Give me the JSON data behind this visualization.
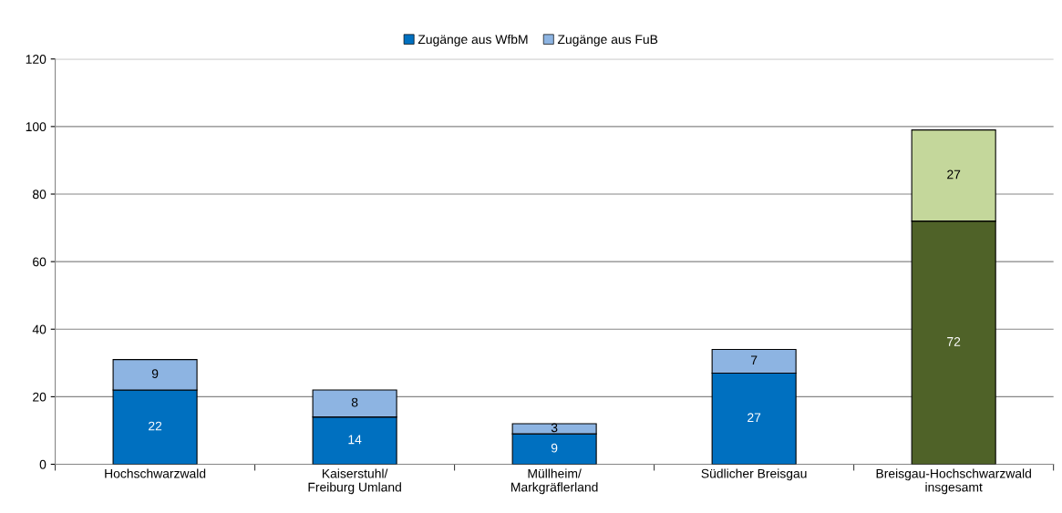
{
  "chart_data": {
    "type": "bar",
    "stacked": true,
    "categories": [
      "Hochschwarzwald",
      "Kaiserstuhl/\nFreiburg Umland",
      "Müllheim/\nMarkgräflerland",
      "Südlicher Breisgau",
      "Breisgau-Hochschwarzwald\ninsgesamt"
    ],
    "series": [
      {
        "name": "Zugänge aus WfbM",
        "color": "#0070c0",
        "colors": [
          "#0070c0",
          "#0070c0",
          "#0070c0",
          "#0070c0",
          "#4f6228"
        ],
        "values": [
          22,
          14,
          9,
          27,
          72
        ]
      },
      {
        "name": "Zugänge aus FuB",
        "color": "#8db4e2",
        "colors": [
          "#8db4e2",
          "#8db4e2",
          "#8db4e2",
          "#8db4e2",
          "#c4d79b"
        ],
        "values": [
          9,
          8,
          3,
          7,
          27
        ]
      }
    ],
    "ylim": [
      0,
      120
    ],
    "yticks": [
      0,
      20,
      40,
      60,
      80,
      100,
      120
    ],
    "grid": "y",
    "legend": "top",
    "data_labels": true
  }
}
